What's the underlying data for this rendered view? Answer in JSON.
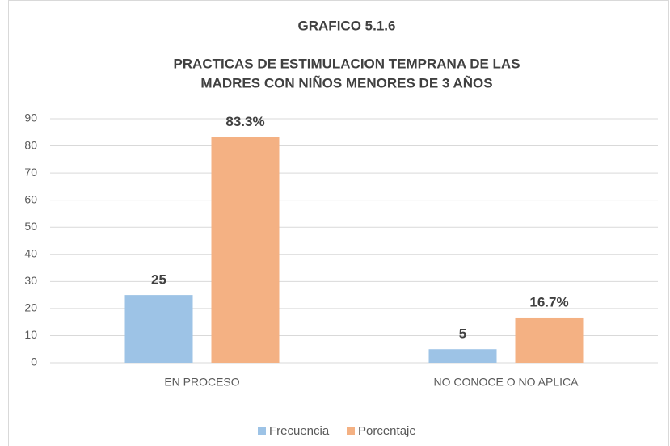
{
  "chart_data": {
    "type": "bar",
    "title": "GRAFICO 5.1.6",
    "subtitle": [
      "PRACTICAS DE ESTIMULACION  TEMPRANA DE LAS",
      "MADRES CON NIÑOS MENORES DE 3 AÑOS"
    ],
    "categories": [
      "EN PROCESO",
      "NO CONOCE O NO APLICA"
    ],
    "series": [
      {
        "name": "Frecuencia",
        "color": "#9dc3e6",
        "values": [
          25,
          5
        ]
      },
      {
        "name": "Porcentaje",
        "color": "#f4b183",
        "values": [
          83.3,
          16.7
        ],
        "value_labels": [
          "83.3%",
          "16.7%"
        ]
      }
    ],
    "ylim": [
      0,
      90
    ],
    "yticks": [
      0,
      10,
      20,
      30,
      40,
      50,
      60,
      70,
      80,
      90
    ],
    "grid": true,
    "legend": "bottom"
  }
}
